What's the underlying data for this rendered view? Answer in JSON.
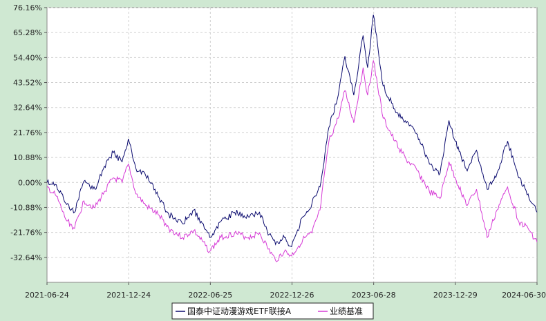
{
  "chart_data": {
    "type": "line",
    "title": "",
    "xlabel": "",
    "ylabel": "",
    "y_tick_labels": [
      "76.16%",
      "65.28%",
      "54.40%",
      "43.52%",
      "32.64%",
      "21.76%",
      "10.88%",
      "0.00%",
      "-10.88%",
      "-21.76%",
      "-32.64%"
    ],
    "y_ticks": [
      76.16,
      65.28,
      54.4,
      43.52,
      32.64,
      21.76,
      10.88,
      0.0,
      -10.88,
      -21.76,
      -32.64
    ],
    "ylim": [
      -43.52,
      76.16
    ],
    "x_tick_labels": [
      "2021-06-24",
      "2021-12-24",
      "2022-06-25",
      "2022-12-26",
      "2023-06-28",
      "2023-12-29",
      "2024-06-30"
    ],
    "xlim": [
      "2021-06-24",
      "2024-06-30"
    ],
    "grid": true,
    "legend_position": "bottom-center",
    "series": [
      {
        "name": "国泰中证动漫游戏ETF联接A",
        "color": "#0a0a6e",
        "x": [
          "2021-06-24",
          "2021-07-15",
          "2021-08-05",
          "2021-08-25",
          "2021-09-15",
          "2021-10-10",
          "2021-10-31",
          "2021-11-20",
          "2021-12-10",
          "2021-12-24",
          "2022-01-10",
          "2022-02-01",
          "2022-03-01",
          "2022-03-25",
          "2022-04-25",
          "2022-05-20",
          "2022-06-25",
          "2022-07-20",
          "2022-08-20",
          "2022-09-20",
          "2022-10-15",
          "2022-11-01",
          "2022-11-20",
          "2022-12-10",
          "2022-12-26",
          "2023-01-20",
          "2023-02-10",
          "2023-02-28",
          "2023-03-20",
          "2023-04-10",
          "2023-04-25",
          "2023-05-15",
          "2023-06-05",
          "2023-06-15",
          "2023-06-28",
          "2023-07-20",
          "2023-08-15",
          "2023-09-10",
          "2023-10-05",
          "2023-11-01",
          "2023-11-25",
          "2023-12-15",
          "2023-12-29",
          "2024-01-25",
          "2024-02-15",
          "2024-03-10",
          "2024-04-01",
          "2024-04-25",
          "2024-05-20",
          "2024-06-10",
          "2024-06-30"
        ],
        "values": [
          0.0,
          -1.0,
          -9.0,
          -13.0,
          0.5,
          -3.0,
          7.0,
          13.0,
          9.0,
          19.0,
          6.0,
          3.0,
          -6.0,
          -14.0,
          -18.0,
          -12.0,
          -24.0,
          -17.0,
          -13.0,
          -15.0,
          -13.0,
          -21.0,
          -27.0,
          -24.0,
          -28.0,
          -15.0,
          -9.0,
          -2.0,
          24.0,
          38.0,
          55.0,
          38.0,
          64.0,
          50.0,
          73.0,
          42.0,
          32.0,
          26.0,
          21.0,
          8.0,
          4.0,
          27.0,
          18.0,
          5.0,
          14.0,
          -3.0,
          4.0,
          18.0,
          2.0,
          -5.0,
          -13.0
        ]
      },
      {
        "name": "业绩基准",
        "color": "#d63ad6",
        "x": [
          "2021-06-24",
          "2021-07-15",
          "2021-08-05",
          "2021-08-25",
          "2021-09-15",
          "2021-10-10",
          "2021-10-31",
          "2021-11-20",
          "2021-12-10",
          "2021-12-24",
          "2022-01-10",
          "2022-02-01",
          "2022-03-01",
          "2022-03-25",
          "2022-04-25",
          "2022-05-20",
          "2022-06-25",
          "2022-07-20",
          "2022-08-20",
          "2022-09-20",
          "2022-10-15",
          "2022-11-01",
          "2022-11-20",
          "2022-12-10",
          "2022-12-26",
          "2023-01-20",
          "2023-02-10",
          "2023-02-28",
          "2023-03-20",
          "2023-04-10",
          "2023-04-25",
          "2023-05-15",
          "2023-06-05",
          "2023-06-15",
          "2023-06-28",
          "2023-07-20",
          "2023-08-15",
          "2023-09-10",
          "2023-10-05",
          "2023-11-01",
          "2023-11-25",
          "2023-12-15",
          "2023-12-29",
          "2024-01-25",
          "2024-02-15",
          "2024-03-10",
          "2024-04-01",
          "2024-04-25",
          "2024-05-20",
          "2024-06-10",
          "2024-06-30"
        ],
        "values": [
          -2.0,
          -6.0,
          -16.0,
          -20.0,
          -8.0,
          -11.0,
          -4.0,
          2.0,
          0.0,
          8.0,
          -5.0,
          -10.0,
          -14.0,
          -20.0,
          -24.0,
          -21.0,
          -30.0,
          -24.0,
          -22.0,
          -24.0,
          -22.0,
          -28.0,
          -34.0,
          -30.0,
          -32.0,
          -25.0,
          -22.0,
          -12.0,
          18.0,
          28.0,
          40.0,
          26.0,
          50.0,
          38.0,
          53.0,
          28.0,
          18.0,
          10.0,
          5.0,
          -4.0,
          -7.0,
          9.0,
          2.0,
          -10.0,
          -3.0,
          -24.0,
          -12.0,
          -2.0,
          -17.0,
          -20.0,
          -26.0
        ]
      }
    ]
  }
}
